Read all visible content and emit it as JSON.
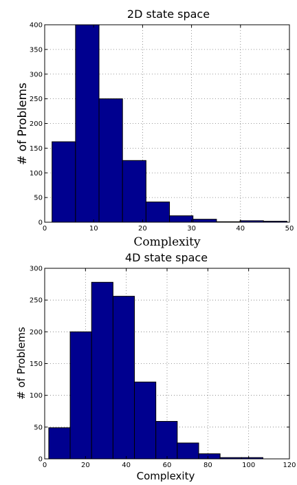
{
  "colors": {
    "bar_fill": "#00008f",
    "bar_stroke": "#000000",
    "grid": "#777777"
  },
  "chart_data": [
    {
      "type": "bar",
      "title": "2D state space",
      "xlabel": "Complexity",
      "ylabel": "# of Problems",
      "xlim": [
        0,
        50
      ],
      "ylim": [
        0,
        400
      ],
      "xticks": [
        "0",
        "10",
        "20",
        "30",
        "40",
        "50"
      ],
      "yticks": [
        "0",
        "50",
        "100",
        "150",
        "200",
        "250",
        "300",
        "350",
        "400"
      ],
      "grid": true,
      "bin_edges": [
        1.5,
        6.3,
        11.1,
        15.9,
        20.7,
        25.5,
        30.3,
        35.1,
        39.9,
        44.7,
        49.5
      ],
      "values": [
        163,
        400,
        250,
        125,
        41,
        13,
        6,
        1,
        3,
        2
      ]
    },
    {
      "type": "bar",
      "title": "4D state space",
      "xlabel": "Complexity",
      "ylabel": "# of Problems",
      "xlim": [
        0,
        120
      ],
      "ylim": [
        0,
        300
      ],
      "xticks": [
        "0",
        "20",
        "40",
        "60",
        "80",
        "100",
        "120"
      ],
      "yticks": [
        "0",
        "50",
        "100",
        "150",
        "200",
        "250",
        "300"
      ],
      "grid": true,
      "bin_edges": [
        2,
        12.5,
        23,
        33.5,
        44,
        54.5,
        65,
        75.5,
        86,
        96.5,
        107
      ],
      "values": [
        49,
        200,
        278,
        256,
        121,
        59,
        25,
        8,
        2,
        2
      ]
    }
  ]
}
